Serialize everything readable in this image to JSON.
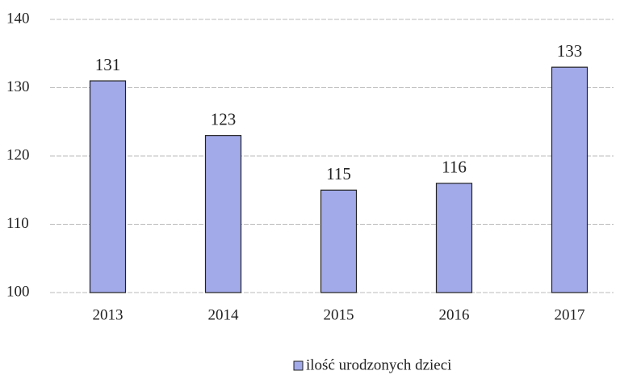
{
  "chart_data": {
    "type": "bar",
    "categories": [
      "2013",
      "2014",
      "2015",
      "2016",
      "2017"
    ],
    "series": [
      {
        "name": "ilość urodzonych dzieci",
        "color": "#a3aaea",
        "values": [
          131,
          123,
          115,
          116,
          133
        ]
      }
    ],
    "ylim": [
      100,
      140
    ],
    "yticks": [
      100,
      110,
      120,
      130,
      140
    ],
    "grid": true,
    "legend": "bottom"
  }
}
